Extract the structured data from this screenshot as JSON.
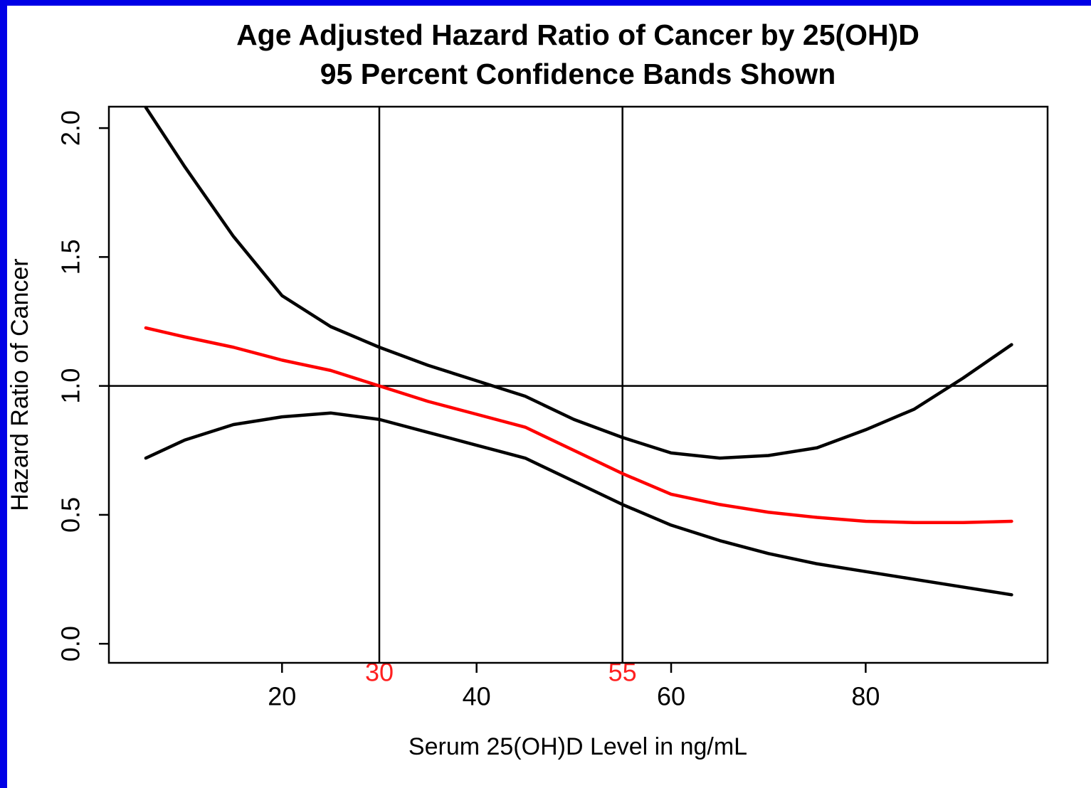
{
  "chart_data": {
    "type": "line",
    "title": "Age Adjusted Hazard Ratio of Cancer by 25(OH)D",
    "subtitle": "95 Percent Confidence Bands Shown",
    "x_label": "Serum 25(OH)D Level in ng/mL",
    "y_label": "Hazard Ratio of Cancer",
    "x": [
      6,
      10,
      15,
      20,
      25,
      30,
      35,
      40,
      45,
      50,
      55,
      60,
      65,
      70,
      75,
      80,
      85,
      90,
      95
    ],
    "series": [
      {
        "color": "#ff0000",
        "values": [
          1.225,
          1.19,
          1.15,
          1.1,
          1.06,
          1.0,
          0.94,
          0.89,
          0.84,
          0.75,
          0.66,
          0.58,
          0.54,
          0.51,
          0.49,
          0.475,
          0.47,
          0.47,
          0.475
        ]
      },
      {
        "color": "#000000",
        "values": [
          2.08,
          1.85,
          1.58,
          1.35,
          1.23,
          1.15,
          1.08,
          1.02,
          0.96,
          0.87,
          0.8,
          0.74,
          0.72,
          0.73,
          0.76,
          0.83,
          0.91,
          1.03,
          1.16
        ]
      },
      {
        "color": "#000000",
        "values": [
          0.72,
          0.79,
          0.85,
          0.88,
          0.895,
          0.87,
          0.82,
          0.77,
          0.72,
          0.63,
          0.54,
          0.46,
          0.4,
          0.35,
          0.31,
          0.28,
          0.25,
          0.22,
          0.19
        ]
      }
    ],
    "xlim": [
      2.2,
      98.7
    ],
    "ylim": [
      -0.074,
      2.083
    ],
    "xticks": [
      20,
      40,
      60,
      80
    ],
    "yticks": [
      {
        "value": 0,
        "label": "0.0"
      },
      {
        "value": 0.5,
        "label": "0.5"
      },
      {
        "value": 1,
        "label": "1.0"
      },
      {
        "value": 1.5,
        "label": "1.5"
      },
      {
        "value": 2,
        "label": "2.0"
      }
    ],
    "reference_lines": {
      "x": [
        30,
        55
      ],
      "x_label_color": "#ff2020",
      "y": [
        1
      ],
      "color": "#000000"
    }
  }
}
